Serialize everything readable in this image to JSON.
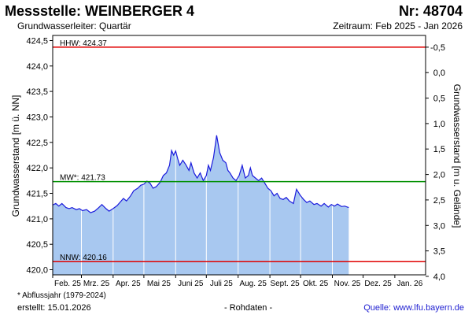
{
  "header": {
    "title": "Messstelle: WEINBERGER 4",
    "number": "Nr: 48704",
    "subtitle": "Grundwasserleiter: Quartär",
    "period": "Zeitraum: Feb 2025 - Jan 2026"
  },
  "footer": {
    "footnote": "* Abflussjahr (1979-2024)",
    "created": "erstellt:  15.01.2026",
    "raw": "- Rohdaten -",
    "source": "Quelle: www.lfu.bayern.de"
  },
  "colors": {
    "fill": "#a8c8f0",
    "line": "#1a1adc",
    "hhw": "#e00000",
    "mw": "#009000",
    "nnw": "#e00000",
    "grid": "#ffffff",
    "frame": "#000000"
  },
  "chart_data": {
    "type": "area",
    "ylabel": "Grundwasserstand [m ü. NN]",
    "y2label": "Grundwasserstand [m u. Gelände]",
    "ylim": [
      419.9,
      424.6
    ],
    "yticks": [
      "424,5",
      "424,0",
      "423,5",
      "423,0",
      "422,5",
      "422,0",
      "421,5",
      "421,0",
      "420,5",
      "420,0"
    ],
    "yticks_values": [
      424.5,
      424.0,
      423.5,
      423.0,
      422.5,
      422.0,
      421.5,
      421.0,
      420.5,
      420.0
    ],
    "y2ticks": [
      "-0,5",
      "0,0",
      "0,5",
      "1,0",
      "1,5",
      "2,0",
      "2,5",
      "3,0",
      "3,5",
      "4,0"
    ],
    "y2ticks_values": [
      -0.5,
      0.0,
      0.5,
      1.0,
      1.5,
      2.0,
      2.5,
      3.0,
      3.5,
      4.0
    ],
    "xticks": [
      "Feb. 25",
      "Mrz. 25",
      "Apr. 25",
      "Mai 25",
      "Juni 25",
      "Juli 25",
      "Aug. 25",
      "Sept. 25",
      "Okt. 25",
      "Nov. 25",
      "Dez. 25",
      "Jan. 26"
    ],
    "xlim": [
      "2025-02-01",
      "2026-01-31"
    ],
    "reference_lines": [
      {
        "label": "HHW: 424.37",
        "value": 424.37,
        "color": "#e00000"
      },
      {
        "label": "MW*: 421.73",
        "value": 421.73,
        "color": "#009000"
      },
      {
        "label": "NNW: 420.16",
        "value": 420.16,
        "color": "#e00000"
      }
    ],
    "series": [
      {
        "x": [
          "2025-02-01",
          "2025-02-04",
          "2025-02-07",
          "2025-02-10",
          "2025-02-14",
          "2025-02-17",
          "2025-02-20",
          "2025-02-24",
          "2025-02-27",
          "2025-03-02",
          "2025-03-06",
          "2025-03-10",
          "2025-03-14",
          "2025-03-18",
          "2025-03-21",
          "2025-03-25",
          "2025-03-28",
          "2025-04-01",
          "2025-04-05",
          "2025-04-08",
          "2025-04-11",
          "2025-04-14",
          "2025-04-18",
          "2025-04-21",
          "2025-04-25",
          "2025-04-28",
          "2025-05-01",
          "2025-05-04",
          "2025-05-07",
          "2025-05-10",
          "2025-05-13",
          "2025-05-17",
          "2025-05-20",
          "2025-05-23",
          "2025-05-26",
          "2025-05-28",
          "2025-05-30",
          "2025-06-01",
          "2025-06-03",
          "2025-06-05",
          "2025-06-08",
          "2025-06-11",
          "2025-06-14",
          "2025-06-16",
          "2025-06-19",
          "2025-06-22",
          "2025-06-25",
          "2025-06-28",
          "2025-07-01",
          "2025-07-03",
          "2025-07-05",
          "2025-07-08",
          "2025-07-11",
          "2025-07-14",
          "2025-07-17",
          "2025-07-20",
          "2025-07-22",
          "2025-07-24",
          "2025-07-27",
          "2025-07-30",
          "2025-08-02",
          "2025-08-05",
          "2025-08-08",
          "2025-08-11",
          "2025-08-13",
          "2025-08-15",
          "2025-08-18",
          "2025-08-21",
          "2025-08-24",
          "2025-08-27",
          "2025-08-30",
          "2025-09-02",
          "2025-09-05",
          "2025-09-08",
          "2025-09-11",
          "2025-09-14",
          "2025-09-17",
          "2025-09-20",
          "2025-09-24",
          "2025-09-27",
          "2025-10-01",
          "2025-10-04",
          "2025-10-07",
          "2025-10-10",
          "2025-10-14",
          "2025-10-17",
          "2025-10-21",
          "2025-10-24",
          "2025-10-28",
          "2025-10-31",
          "2025-11-03",
          "2025-11-06",
          "2025-11-10",
          "2025-11-13",
          "2025-11-17"
        ],
        "y": [
          421.27,
          421.3,
          421.25,
          421.3,
          421.22,
          421.2,
          421.22,
          421.18,
          421.2,
          421.16,
          421.18,
          421.12,
          421.15,
          421.22,
          421.28,
          421.2,
          421.15,
          421.2,
          421.26,
          421.33,
          421.4,
          421.35,
          421.45,
          421.55,
          421.6,
          421.66,
          421.68,
          421.74,
          421.7,
          421.6,
          421.63,
          421.72,
          421.85,
          421.9,
          422.05,
          422.34,
          422.25,
          422.33,
          422.18,
          422.05,
          422.15,
          422.06,
          421.95,
          422.1,
          421.9,
          421.8,
          421.9,
          421.75,
          421.85,
          422.05,
          421.95,
          422.2,
          422.64,
          422.3,
          422.15,
          422.1,
          421.95,
          421.9,
          421.8,
          421.75,
          421.85,
          422.05,
          421.8,
          421.85,
          422.0,
          421.85,
          421.8,
          421.75,
          421.8,
          421.7,
          421.6,
          421.55,
          421.45,
          421.5,
          421.4,
          421.38,
          421.42,
          421.35,
          421.3,
          421.58,
          421.45,
          421.38,
          421.32,
          421.35,
          421.28,
          421.3,
          421.25,
          421.3,
          421.23,
          421.28,
          421.25,
          421.29,
          421.24,
          421.25,
          421.22
        ]
      }
    ]
  }
}
